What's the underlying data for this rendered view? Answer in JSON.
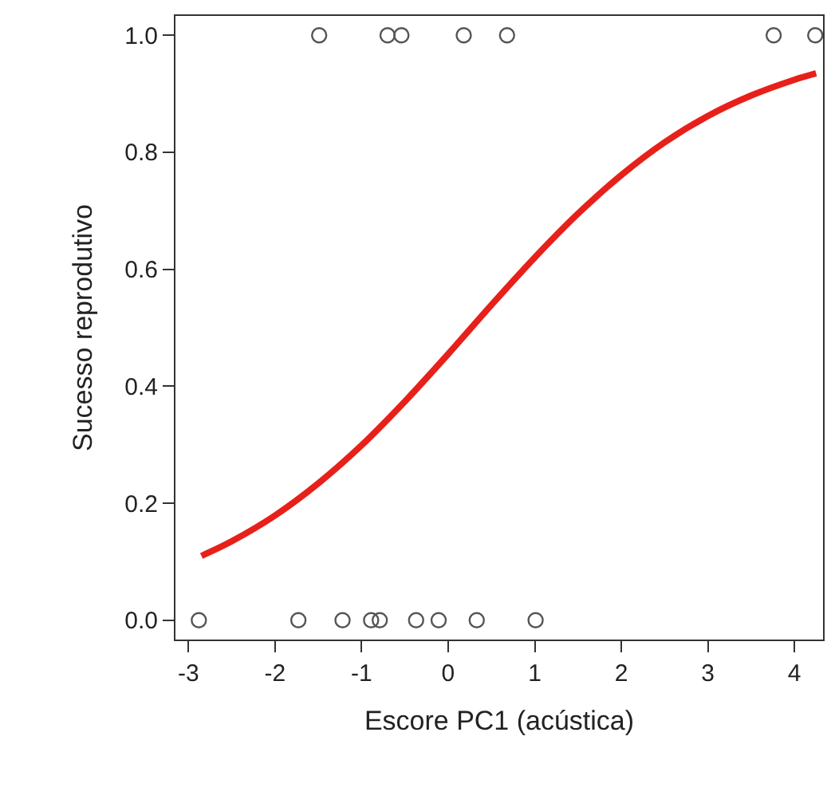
{
  "chart_data": {
    "type": "scatter",
    "xlabel": "Escore PC1 (acústica)",
    "ylabel": "Sucesso reprodutivo",
    "xlim": [
      -3.15,
      4.33
    ],
    "xticks": [
      -3,
      -2,
      -1,
      0,
      1,
      2,
      3,
      4
    ],
    "ylim": [
      -0.033,
      1.033
    ],
    "yticks": [
      {
        "value": 0,
        "label": "0.0"
      },
      0.2,
      0.4,
      0.6,
      0.8,
      {
        "value": 1,
        "label": "1.0"
      }
    ],
    "marker": "circle",
    "series": [
      {
        "color": "#555555",
        "x": [
          -1.49,
          -0.7,
          -0.54,
          0.18,
          0.68,
          3.76,
          4.24,
          -2.88,
          -1.73,
          -1.22,
          -0.89,
          -0.79,
          -0.37,
          -0.11,
          0.33,
          1.01
        ],
        "values": [
          1,
          1,
          1,
          1,
          1,
          1,
          1,
          0,
          0,
          0,
          0,
          0,
          0,
          0,
          0,
          0
        ]
      },
      {
        "type": "line",
        "color": "#e8201a",
        "marker": "none",
        "x": [
          -2.85,
          -2.5,
          -2,
          -1.5,
          -1,
          -0.5,
          0,
          0.5,
          1,
          1.5,
          2,
          2.5,
          3,
          3.5,
          4,
          4.25
        ],
        "values": [
          0.11,
          0.135,
          0.179,
          0.234,
          0.299,
          0.374,
          0.455,
          0.539,
          0.62,
          0.695,
          0.761,
          0.817,
          0.862,
          0.897,
          0.924,
          0.935
        ]
      }
    ]
  }
}
